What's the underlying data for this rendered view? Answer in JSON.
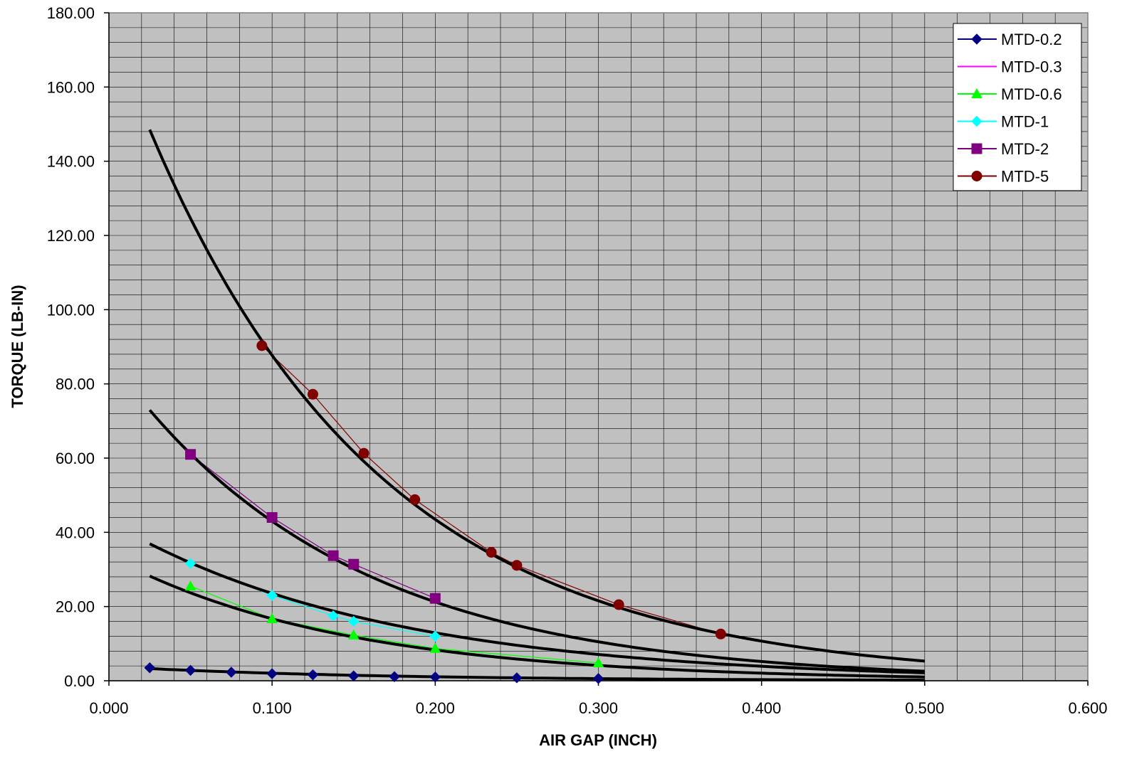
{
  "chart_data": {
    "type": "scatter",
    "title": "",
    "xlabel": "AIR GAP (INCH)",
    "ylabel": "TORQUE (LB-IN)",
    "xlim": [
      0,
      0.6
    ],
    "ylim": [
      0,
      180
    ],
    "x_ticks": [
      "0.000",
      "0.100",
      "0.200",
      "0.300",
      "0.400",
      "0.500",
      "0.600"
    ],
    "y_ticks": [
      "0.00",
      "20.00",
      "40.00",
      "60.00",
      "80.00",
      "100.00",
      "120.00",
      "140.00",
      "160.00",
      "180.00"
    ],
    "grid": true,
    "plot_background": "#c0c0c0",
    "legend_position": "top-right",
    "series": [
      {
        "name": "MTD-0.2",
        "color": "#000080",
        "marker": "diamond",
        "x": [
          0.025,
          0.05,
          0.075,
          0.1,
          0.125,
          0.15,
          0.175,
          0.2,
          0.25,
          0.3
        ],
        "y": [
          3.5,
          2.8,
          2.3,
          1.9,
          1.6,
          1.3,
          1.1,
          1.0,
          0.8,
          0.6
        ]
      },
      {
        "name": "MTD-0.3",
        "color": "#ff00ff",
        "marker": "none",
        "x": [],
        "y": []
      },
      {
        "name": "MTD-0.6",
        "color": "#00ff00",
        "marker": "triangle",
        "x": [
          0.05,
          0.1,
          0.15,
          0.2,
          0.3
        ],
        "y": [
          25.5,
          16.7,
          12.3,
          8.7,
          4.8
        ]
      },
      {
        "name": "MTD-1",
        "color": "#00ffff",
        "marker": "diamond",
        "x": [
          0.05,
          0.1,
          0.1375,
          0.15,
          0.2
        ],
        "y": [
          31.6,
          23.0,
          17.5,
          16.0,
          12.0
        ]
      },
      {
        "name": "MTD-2",
        "color": "#800080",
        "marker": "square",
        "x": [
          0.05,
          0.1,
          0.1375,
          0.15,
          0.2
        ],
        "y": [
          61.0,
          44.0,
          33.7,
          31.4,
          22.2
        ]
      },
      {
        "name": "MTD-5",
        "color": "#800000",
        "marker": "circle",
        "x": [
          0.09375,
          0.125,
          0.15625,
          0.1875,
          0.234375,
          0.25,
          0.3125,
          0.375
        ],
        "y": [
          90.3,
          77.2,
          61.3,
          48.8,
          34.6,
          31.1,
          20.5,
          12.6
        ]
      }
    ],
    "trendlines": [
      {
        "type": "exponential",
        "a": 177.0,
        "b": -7.02,
        "x_range": [
          0.025,
          0.5
        ],
        "color": "#000000"
      },
      {
        "type": "exponential",
        "a": 87.0,
        "b": -7.05,
        "x_range": [
          0.025,
          0.5
        ],
        "color": "#000000"
      },
      {
        "type": "exponential",
        "a": 42.9,
        "b": -6.0,
        "x_range": [
          0.025,
          0.5
        ],
        "color": "#000000"
      },
      {
        "type": "exponential",
        "a": 33.6,
        "b": -6.99,
        "x_range": [
          0.025,
          0.5
        ],
        "color": "#000000"
      },
      {
        "type": "exponential",
        "a": 3.84,
        "b": -6.36,
        "x_range": [
          0.025,
          0.5
        ],
        "color": "#000000"
      }
    ]
  }
}
